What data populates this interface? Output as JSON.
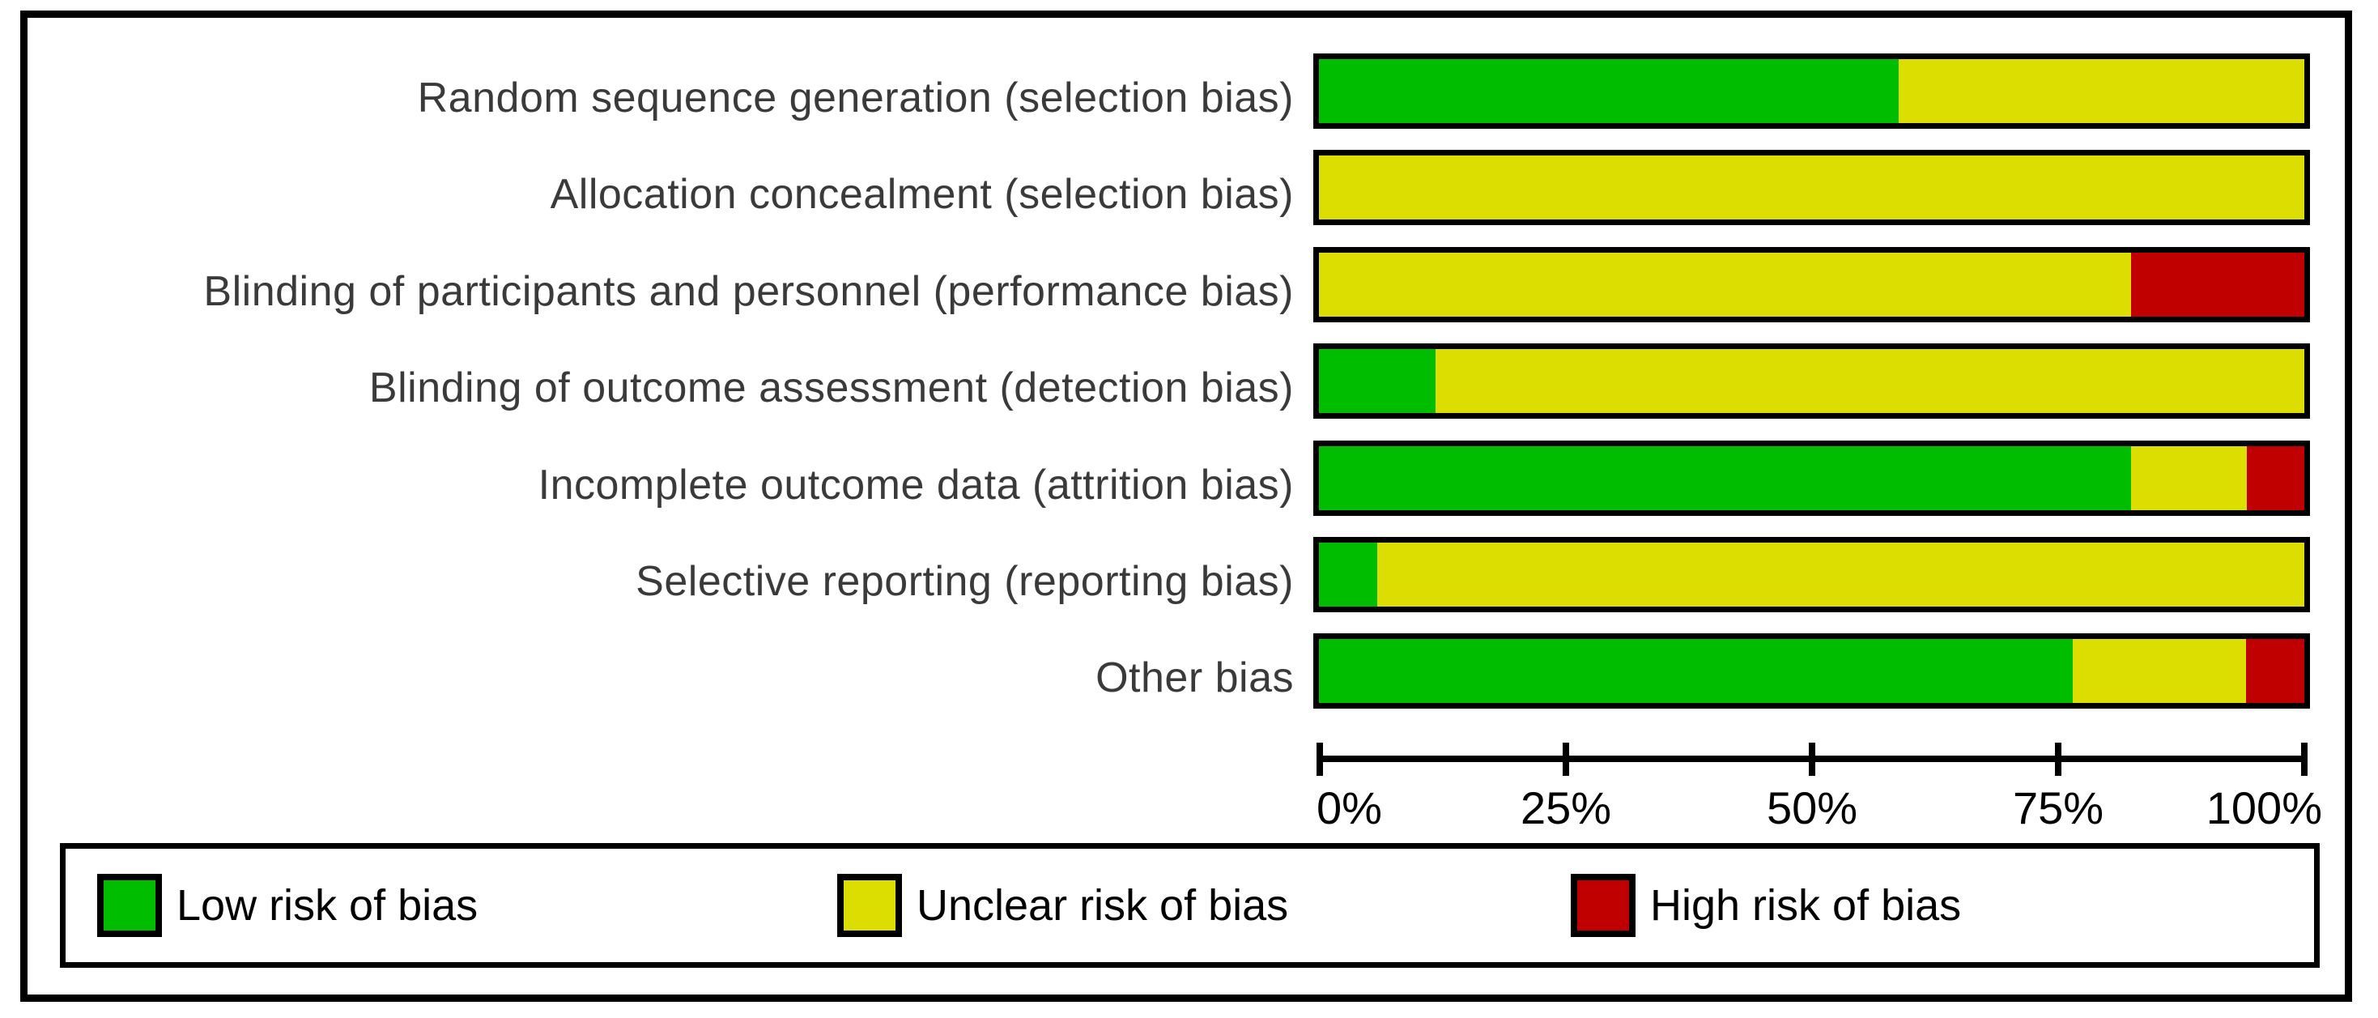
{
  "chart_data": {
    "type": "bar",
    "variant": "horizontal-stacked-percentage",
    "title": "",
    "categories": [
      "Random sequence generation (selection bias)",
      "Allocation concealment (selection bias)",
      "Blinding of participants and personnel (performance bias)",
      "Blinding of outcome assessment (detection bias)",
      "Incomplete outcome data (attrition bias)",
      "Selective reporting (reporting bias)",
      "Other bias"
    ],
    "series": [
      {
        "key": "low",
        "name": "Low risk of bias",
        "color": "#00bd00",
        "values_pct": [
          58.8,
          0,
          0,
          11.8,
          82.4,
          5.9,
          76.5
        ]
      },
      {
        "key": "unclear",
        "name": "Unclear risk of bias",
        "color": "#dcdd00",
        "values_pct": [
          41.2,
          100,
          82.4,
          88.2,
          11.8,
          94.1,
          17.6
        ]
      },
      {
        "key": "high",
        "name": "High risk of bias",
        "color": "#c00000",
        "values_pct": [
          0,
          0,
          17.6,
          0,
          5.9,
          0,
          5.9
        ]
      }
    ],
    "x_ticks": [
      "0%",
      "25%",
      "50%",
      "75%",
      "100%"
    ],
    "xlim": [
      0,
      100
    ],
    "grid": "off",
    "legend_position": "bottom"
  }
}
